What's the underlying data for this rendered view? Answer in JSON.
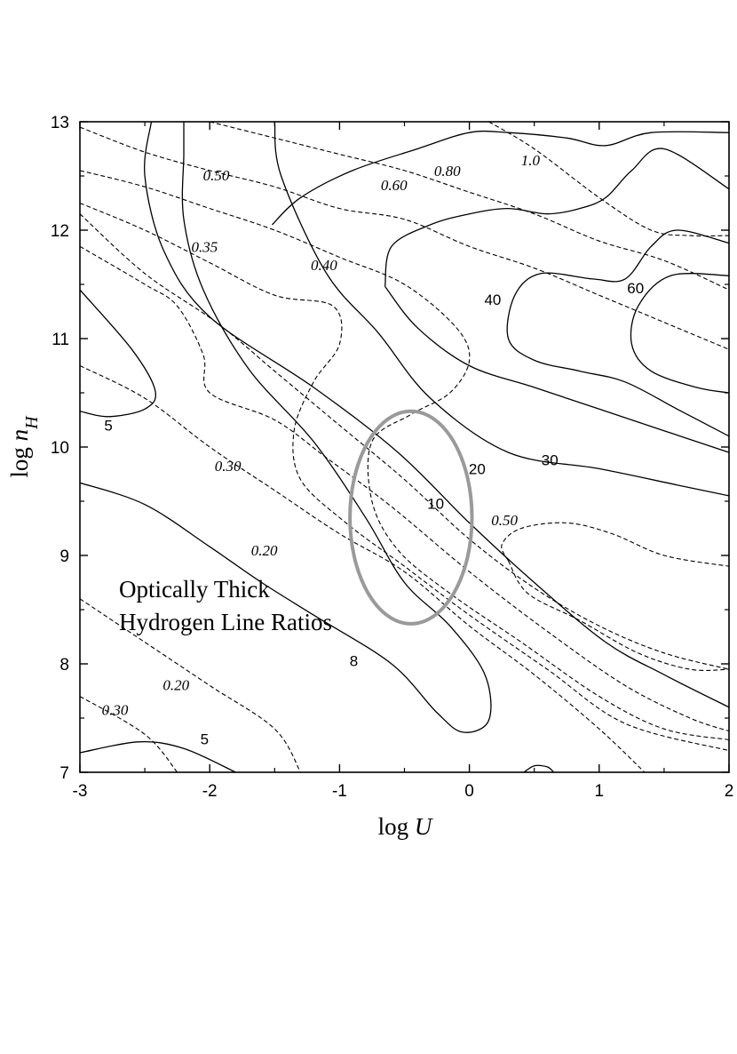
{
  "chart_data": {
    "type": "contour",
    "xlabel": "log U",
    "ylabel": "log n_H",
    "xlim": [
      -3,
      2
    ],
    "ylim": [
      7,
      13
    ],
    "x_ticks": [
      "-3",
      "-2",
      "-1",
      "0",
      "1",
      "2"
    ],
    "y_ticks": [
      "7",
      "8",
      "9",
      "10",
      "11",
      "12",
      "13"
    ],
    "annotation_lines": [
      "Optically Thick",
      "Hydrogen Line Ratios"
    ],
    "highlight_ellipse": {
      "center": [
        -0.45,
        9.35
      ],
      "half_width_logU": 0.47,
      "half_height_lognH": 0.98
    },
    "solid_contours": [
      {
        "label": "5",
        "points": [
          [
            -3,
            10.33
          ],
          [
            -2.78,
            10.28
          ],
          [
            -2.5,
            10.35
          ],
          [
            -2.42,
            10.52
          ],
          [
            -2.6,
            10.9
          ],
          [
            -3,
            11.45
          ]
        ]
      },
      {
        "label": "5",
        "points": [
          [
            -3,
            7.18
          ],
          [
            -2.55,
            7.28
          ],
          [
            -2.2,
            7.22
          ],
          [
            -1.8,
            7.0
          ]
        ]
      },
      {
        "label": "8",
        "points": [
          [
            -3,
            9.67
          ],
          [
            -2.5,
            9.47
          ],
          [
            -2.0,
            9.08
          ],
          [
            -1.6,
            8.75
          ],
          [
            -1.2,
            8.45
          ],
          [
            -0.6,
            8.0
          ],
          [
            -0.25,
            7.55
          ],
          [
            -0.05,
            7.37
          ],
          [
            0.15,
            7.48
          ],
          [
            0.12,
            7.9
          ],
          [
            -0.15,
            8.35
          ],
          [
            -0.5,
            8.75
          ],
          [
            -0.8,
            9.35
          ],
          [
            -1.2,
            10.05
          ],
          [
            -1.7,
            10.72
          ],
          [
            -2.05,
            11.45
          ],
          [
            -2.2,
            12.1
          ],
          [
            -2.2,
            12.7
          ],
          [
            -2.2,
            13
          ]
        ]
      },
      {
        "label": "10",
        "points": [
          [
            -2.45,
            13
          ],
          [
            -2.5,
            12.5
          ],
          [
            -2.35,
            11.8
          ],
          [
            -2.0,
            11.2
          ],
          [
            -1.2,
            10.55
          ],
          [
            -0.55,
            9.95
          ],
          [
            0.0,
            9.3
          ],
          [
            0.5,
            8.75
          ],
          [
            1.05,
            8.2
          ],
          [
            1.5,
            7.9
          ],
          [
            2,
            7.6
          ]
        ]
      },
      {
        "label": "20",
        "points": [
          [
            -1.5,
            13
          ],
          [
            -1.45,
            12.5
          ],
          [
            -1.1,
            11.6
          ],
          [
            -0.7,
            11.05
          ],
          [
            -0.3,
            10.45
          ],
          [
            0.3,
            9.95
          ],
          [
            1.0,
            9.8
          ],
          [
            1.6,
            9.65
          ],
          [
            2,
            9.55
          ]
        ]
      },
      {
        "label": "20",
        "points": [
          [
            -1.52,
            12.05
          ],
          [
            -1.3,
            12.3
          ],
          [
            -0.9,
            12.55
          ],
          [
            -0.4,
            12.75
          ],
          [
            0,
            12.9
          ],
          [
            0.3,
            12.9
          ],
          [
            0.75,
            12.85
          ],
          [
            1.05,
            12.78
          ],
          [
            1.4,
            12.9
          ],
          [
            2,
            12.9
          ]
        ]
      },
      {
        "label": "30",
        "points": [
          [
            -0.65,
            11.48
          ],
          [
            -0.6,
            11.85
          ],
          [
            -0.3,
            12.05
          ],
          [
            0,
            12.15
          ],
          [
            0.3,
            12.2
          ],
          [
            0.6,
            12.15
          ],
          [
            0.85,
            12.2
          ],
          [
            1.05,
            12.3
          ],
          [
            1.25,
            12.55
          ],
          [
            1.5,
            12.75
          ],
          [
            2,
            12.38
          ]
        ]
      },
      {
        "label": "30",
        "points": [
          [
            -0.65,
            11.48
          ],
          [
            -0.4,
            11.1
          ],
          [
            0,
            10.75
          ],
          [
            0.5,
            10.55
          ],
          [
            1.0,
            10.35
          ],
          [
            1.5,
            10.15
          ],
          [
            2,
            9.95
          ]
        ]
      },
      {
        "label": "40",
        "points": [
          [
            2,
            11.88
          ],
          [
            1.6,
            12.0
          ],
          [
            1.4,
            11.85
          ],
          [
            1.2,
            11.55
          ],
          [
            0.95,
            11.55
          ],
          [
            0.55,
            11.6
          ],
          [
            0.35,
            11.4
          ],
          [
            0.3,
            11.0
          ],
          [
            0.5,
            10.8
          ],
          [
            0.85,
            10.7
          ],
          [
            1.2,
            10.6
          ],
          [
            1.6,
            10.35
          ],
          [
            2,
            10.1
          ]
        ]
      },
      {
        "label": "60",
        "points": [
          [
            2,
            11.58
          ],
          [
            1.55,
            11.58
          ],
          [
            1.3,
            11.3
          ],
          [
            1.25,
            10.95
          ],
          [
            1.4,
            10.7
          ],
          [
            1.75,
            10.55
          ],
          [
            2,
            10.5
          ]
        ]
      },
      {
        "label": "",
        "points": [
          [
            0.42,
            7.0
          ],
          [
            0.5,
            7.06
          ],
          [
            0.6,
            7.05
          ],
          [
            0.65,
            7.0
          ]
        ]
      }
    ],
    "dashed_contours": [
      {
        "label": "0.50",
        "points": [
          [
            -3,
            12.15
          ],
          [
            -2.5,
            11.6
          ],
          [
            -1.95,
            11.15
          ],
          [
            -1.5,
            10.7
          ],
          [
            -1,
            10.2
          ],
          [
            -0.5,
            9.7
          ],
          [
            0,
            9.15
          ],
          [
            0.5,
            8.7
          ],
          [
            1,
            8.35
          ],
          [
            1.5,
            8.1
          ],
          [
            2,
            7.95
          ]
        ]
      },
      {
        "label": "0.50",
        "points": [
          [
            0.3,
            8.95
          ],
          [
            0.25,
            9.1
          ],
          [
            0.4,
            9.25
          ],
          [
            0.75,
            9.3
          ],
          [
            1.1,
            9.2
          ],
          [
            1.5,
            9.0
          ],
          [
            2,
            8.9
          ]
        ]
      },
      {
        "label": "0.50",
        "points": [
          [
            0.3,
            8.95
          ],
          [
            0.45,
            8.65
          ],
          [
            0.85,
            8.4
          ],
          [
            1.3,
            8.1
          ],
          [
            1.7,
            7.95
          ],
          [
            2,
            7.95
          ]
        ]
      },
      {
        "label": "0.35",
        "points": [
          [
            -3,
            11.85
          ],
          [
            -2.5,
            11.5
          ],
          [
            -2.25,
            11.3
          ],
          [
            -2.05,
            10.85
          ],
          [
            -2.0,
            10.5
          ],
          [
            -1.5,
            10.25
          ],
          [
            -1.1,
            9.9
          ],
          [
            -0.6,
            9.45
          ],
          [
            0,
            8.85
          ],
          [
            0.6,
            8.3
          ],
          [
            1.2,
            7.8
          ],
          [
            1.7,
            7.5
          ],
          [
            2,
            7.38
          ]
        ]
      },
      {
        "label": "0.40",
        "points": [
          [
            -3,
            12.25
          ],
          [
            -2.5,
            12.0
          ],
          [
            -2.0,
            11.7
          ],
          [
            -1.5,
            11.4
          ],
          [
            -1.05,
            11.3
          ],
          [
            -1.0,
            10.95
          ],
          [
            -1.2,
            10.6
          ],
          [
            -1.35,
            10.15
          ],
          [
            -1.3,
            9.7
          ],
          [
            -0.95,
            9.3
          ],
          [
            -0.5,
            8.9
          ],
          [
            0,
            8.45
          ],
          [
            0.6,
            7.95
          ],
          [
            1.2,
            7.45
          ],
          [
            2,
            7.2
          ]
        ]
      },
      {
        "label": "0.60",
        "points": [
          [
            -3,
            12.55
          ],
          [
            -2.5,
            12.4
          ],
          [
            -2.0,
            12.2
          ],
          [
            -1.5,
            12.0
          ],
          [
            -1.0,
            11.75
          ],
          [
            -0.5,
            11.5
          ],
          [
            -0.1,
            11.1
          ],
          [
            0,
            10.8
          ],
          [
            -0.15,
            10.5
          ],
          [
            -0.45,
            10.3
          ],
          [
            -0.75,
            10.05
          ],
          [
            -0.75,
            9.5
          ],
          [
            -0.55,
            9.05
          ],
          [
            -0.15,
            8.65
          ],
          [
            0.4,
            8.2
          ],
          [
            1.0,
            7.7
          ],
          [
            1.5,
            7.4
          ],
          [
            2,
            7.3
          ]
        ]
      },
      {
        "label": "0.80",
        "points": [
          [
            -3,
            12.95
          ],
          [
            -2.5,
            12.72
          ],
          [
            -2.0,
            12.55
          ],
          [
            -1.5,
            12.4
          ],
          [
            -1.0,
            12.2
          ],
          [
            -0.5,
            12.1
          ],
          [
            0,
            11.85
          ],
          [
            0.5,
            11.65
          ],
          [
            1,
            11.4
          ],
          [
            1.5,
            11.15
          ],
          [
            2,
            10.9
          ]
        ]
      },
      {
        "label": "0.80",
        "points": [
          [
            -2.0,
            13
          ],
          [
            -1.5,
            12.85
          ],
          [
            -1.0,
            12.7
          ],
          [
            -0.5,
            12.55
          ],
          [
            0,
            12.35
          ],
          [
            0.5,
            12.15
          ],
          [
            1,
            11.9
          ],
          [
            1.5,
            11.72
          ],
          [
            2,
            11.45
          ]
        ]
      },
      {
        "label": "1.0",
        "points": [
          [
            0.15,
            13
          ],
          [
            0.5,
            12.75
          ],
          [
            1.0,
            12.3
          ],
          [
            1.4,
            12.0
          ],
          [
            1.7,
            11.95
          ],
          [
            2,
            11.95
          ]
        ]
      },
      {
        "label": "0.30",
        "points": [
          [
            -3,
            10.75
          ],
          [
            -2.5,
            10.45
          ],
          [
            -2.0,
            10.0
          ],
          [
            -1.5,
            9.6
          ],
          [
            -1.0,
            9.2
          ],
          [
            -0.5,
            8.85
          ],
          [
            0,
            8.35
          ],
          [
            0.5,
            7.9
          ],
          [
            1.0,
            7.4
          ],
          [
            1.35,
            7.0
          ]
        ]
      },
      {
        "label": "0.20",
        "points": [
          [
            -3,
            8.6
          ],
          [
            -2.5,
            8.2
          ],
          [
            -2.0,
            7.8
          ],
          [
            -1.5,
            7.4
          ],
          [
            -1.3,
            7.0
          ]
        ]
      },
      {
        "label": "0.30",
        "points": [
          [
            -3,
            7.7
          ],
          [
            -2.5,
            7.35
          ],
          [
            -2.25,
            7.0
          ]
        ]
      }
    ],
    "solid_labels": [
      {
        "text": "5",
        "at": [
          -2.78,
          10.15
        ]
      },
      {
        "text": "5",
        "at": [
          -2.04,
          7.26
        ]
      },
      {
        "text": "8",
        "at": [
          -0.89,
          7.98
        ]
      },
      {
        "text": "10",
        "at": [
          -0.26,
          9.43
        ]
      },
      {
        "text": "20",
        "at": [
          0.06,
          9.75
        ]
      },
      {
        "text": "30",
        "at": [
          0.62,
          9.83
        ]
      },
      {
        "text": "40",
        "at": [
          0.18,
          11.31
        ]
      },
      {
        "text": "60",
        "at": [
          1.28,
          11.42
        ]
      }
    ],
    "dashed_labels": [
      {
        "text": "0.50",
        "at": [
          -1.95,
          12.46
        ]
      },
      {
        "text": "0.35",
        "at": [
          -2.04,
          11.8
        ]
      },
      {
        "text": "0.40",
        "at": [
          -1.12,
          11.63
        ]
      },
      {
        "text": "0.60",
        "at": [
          -0.58,
          12.37
        ]
      },
      {
        "text": "0.80",
        "at": [
          -0.17,
          12.5
        ]
      },
      {
        "text": "1.0",
        "at": [
          0.47,
          12.6
        ]
      },
      {
        "text": "0.30",
        "at": [
          -1.86,
          9.78
        ]
      },
      {
        "text": "0.20",
        "at": [
          -1.58,
          9.0
        ]
      },
      {
        "text": "0.50",
        "at": [
          0.27,
          9.28
        ]
      },
      {
        "text": "0.20",
        "at": [
          -2.26,
          7.76
        ]
      },
      {
        "text": "0.30",
        "at": [
          -2.73,
          7.53
        ]
      }
    ]
  }
}
